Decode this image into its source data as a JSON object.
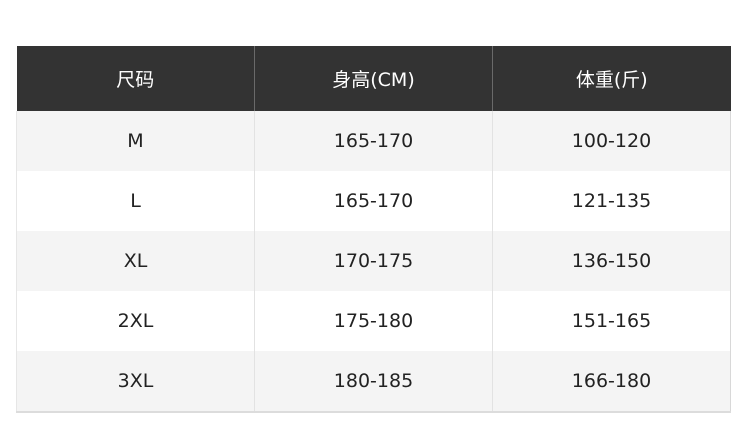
{
  "table": {
    "headers": [
      "尺码",
      "身高(CM)",
      "体重(斤)"
    ],
    "rows": [
      [
        "M",
        "165-170",
        "100-120"
      ],
      [
        "L",
        "165-170",
        "121-135"
      ],
      [
        "XL",
        "170-175",
        "136-150"
      ],
      [
        "2XL",
        "175-180",
        "151-165"
      ],
      [
        "3XL",
        "180-185",
        "166-180"
      ]
    ],
    "header_color": "#333333",
    "stripe_color": "#f4f4f4"
  }
}
